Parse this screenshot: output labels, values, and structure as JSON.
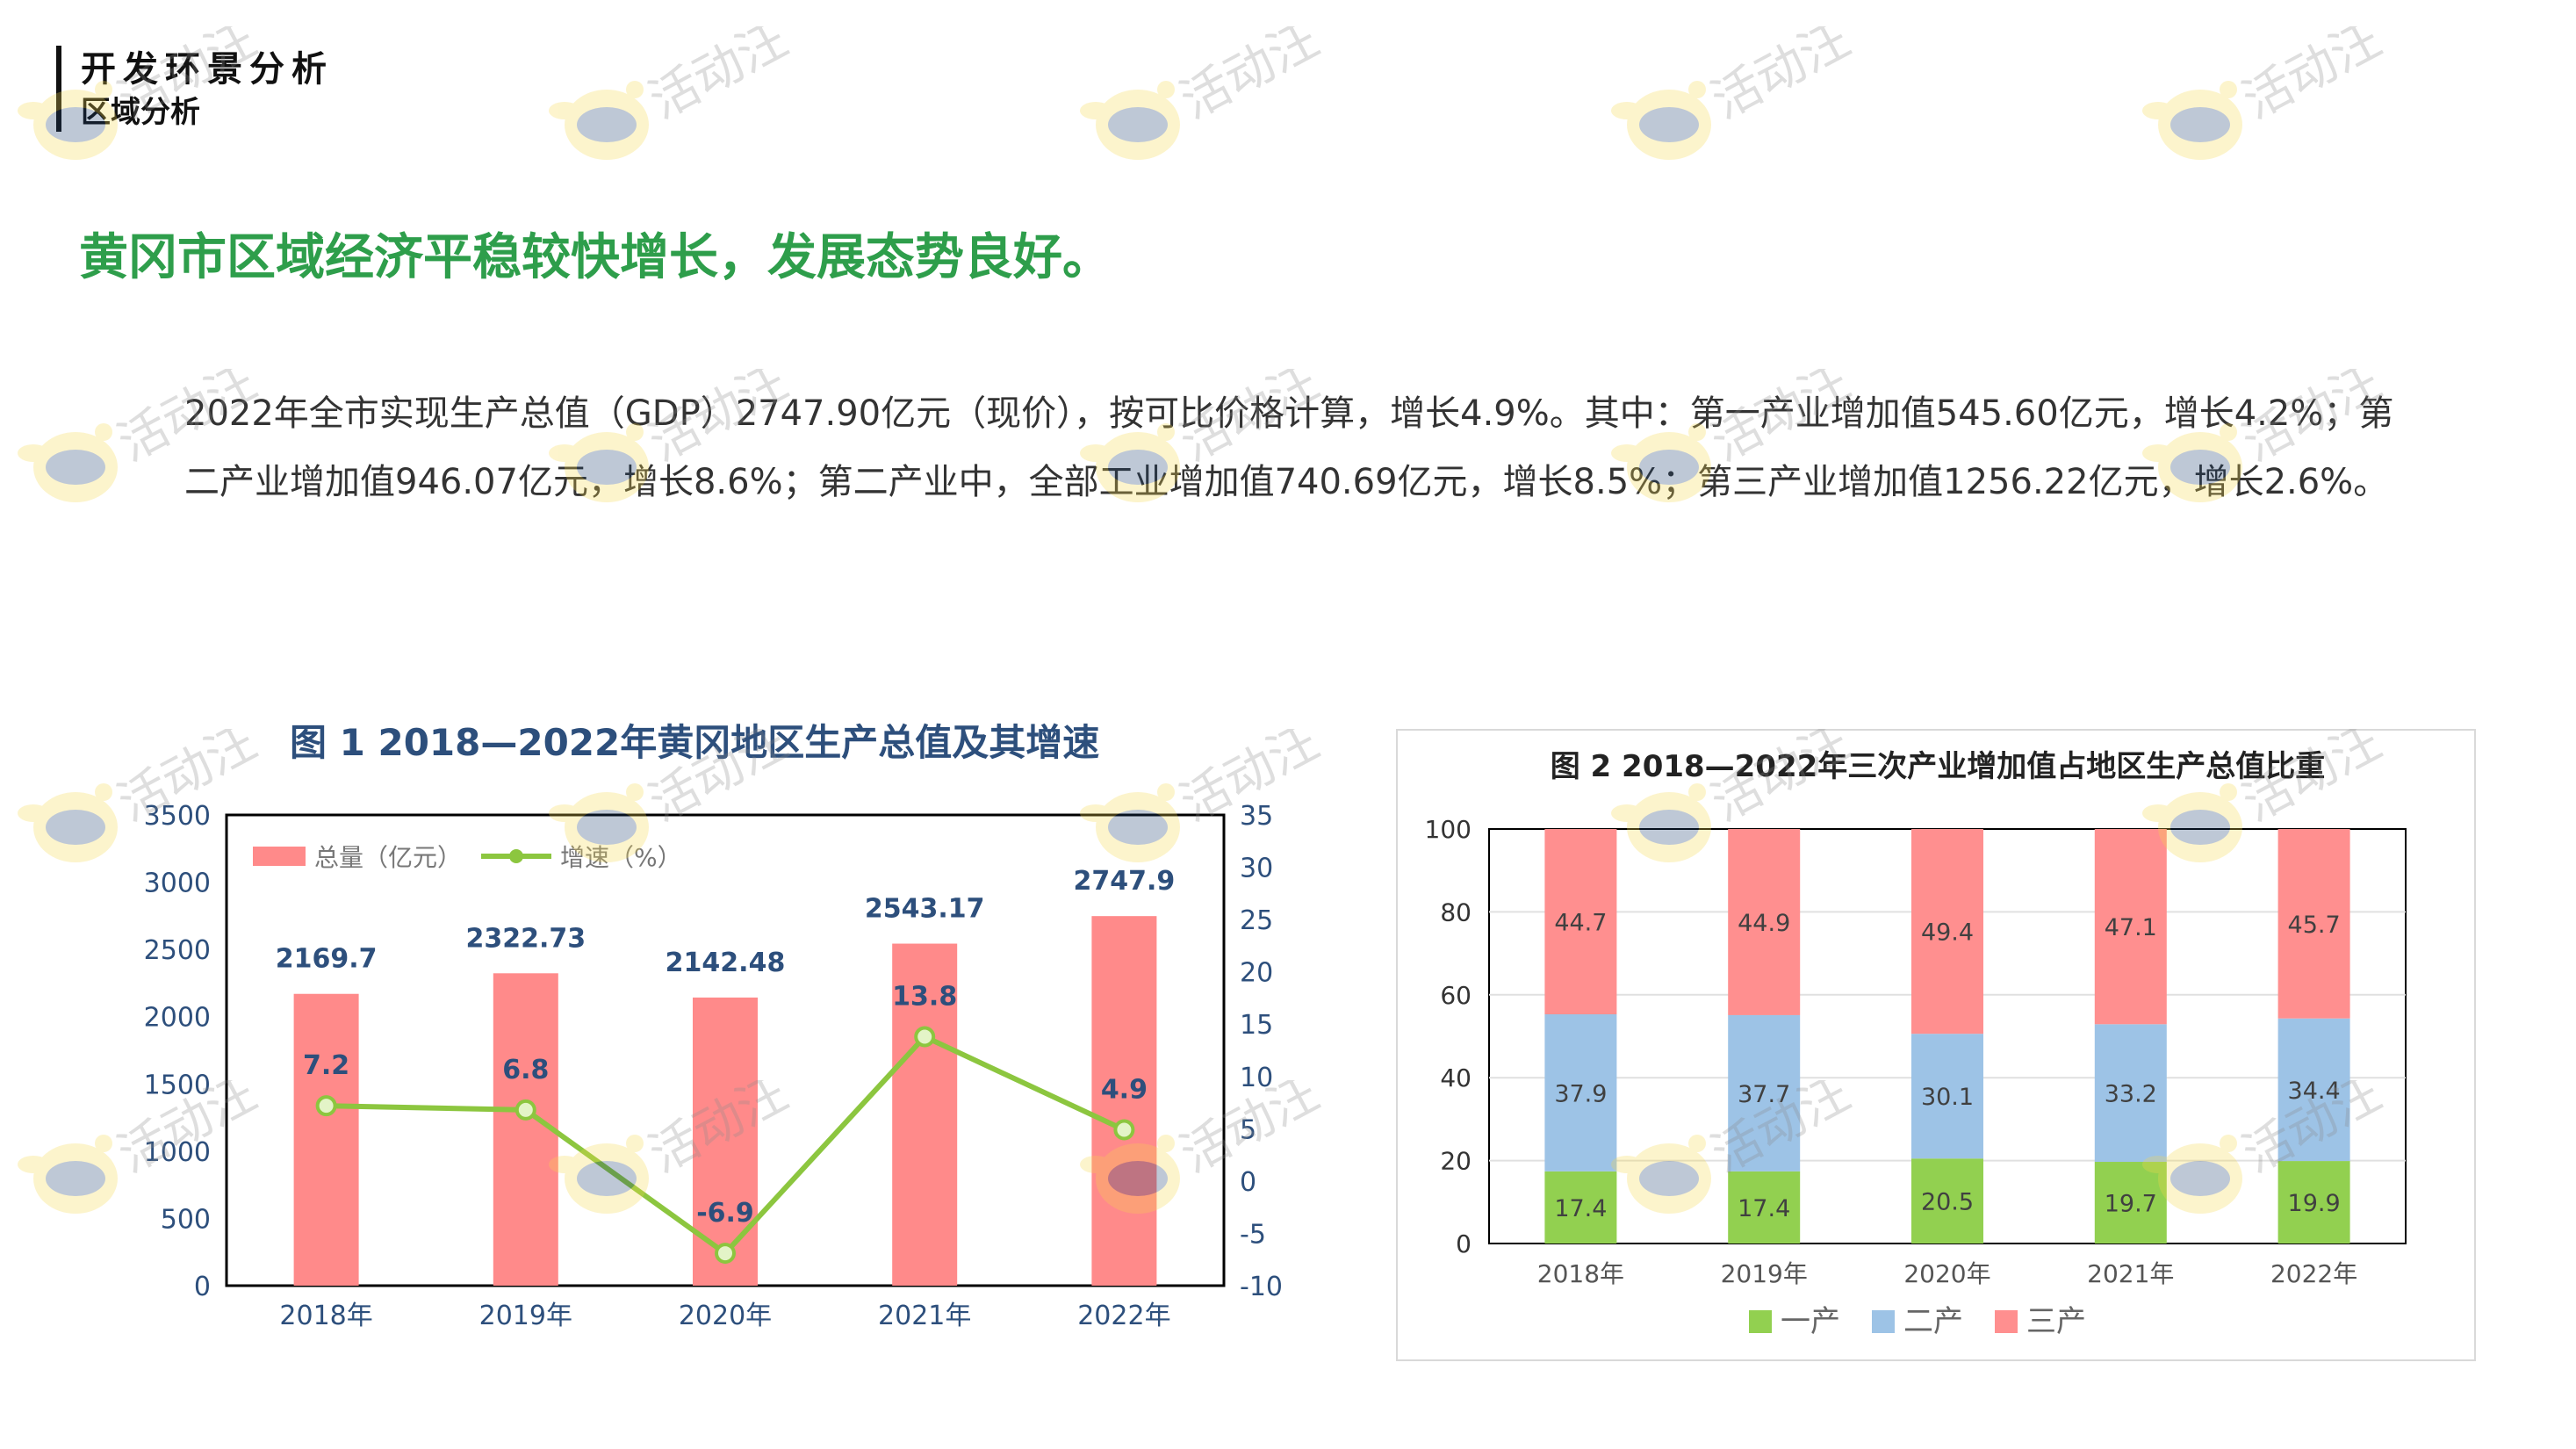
{
  "header": {
    "title": "开发环景分析",
    "subtitle": "区域分析"
  },
  "headline": "黄冈市区域经济平稳较快增长，发展态势良好。",
  "paragraph": "2022年全市实现生产总值（GDP）2747.90亿元（现价），按可比价格计算，增长4.9%。其中：第一产业增加值545.60亿元，增长4.2%；第二产业增加值946.07亿元，增长8.6%；第二产业中，全部工业增加值740.69亿元，增长8.5%；第三产业增加值1256.22亿元，增长2.6%。",
  "watermark_text": "活动汪",
  "colors": {
    "accent": "#2e9e4b",
    "bar": "#ff8a8a",
    "line": "#8cc63f",
    "primary": "#92d050",
    "secondary": "#9dc3e6",
    "tertiary": "#ff8f8f"
  },
  "chart_data": [
    {
      "type": "bar",
      "title": "图 1   2018—2022年黄冈地区生产总值及其增速",
      "categories": [
        "2018年",
        "2019年",
        "2020年",
        "2021年",
        "2022年"
      ],
      "series": [
        {
          "name": "总量（亿元）",
          "type": "bar",
          "axis": "left",
          "values": [
            2169.7,
            2322.73,
            2142.48,
            2543.17,
            2747.9
          ],
          "labels": [
            "2169.7",
            "2322.73",
            "2142.48",
            "2543.17",
            "2747.9"
          ]
        },
        {
          "name": "增速（%）",
          "type": "line",
          "axis": "right",
          "values": [
            7.2,
            6.8,
            -6.9,
            13.8,
            4.9
          ],
          "labels": [
            "7.2",
            "6.8",
            "-6.9",
            "13.8",
            "4.9"
          ]
        }
      ],
      "ylim": [
        0,
        3500
      ],
      "yticks": [
        "0",
        "500",
        "1000",
        "1500",
        "2000",
        "2500",
        "3000",
        "3500"
      ],
      "y2lim": [
        -10,
        35
      ],
      "y2ticks": [
        "-10",
        "-5",
        "0",
        "5",
        "10",
        "15",
        "20",
        "25",
        "30",
        "35"
      ],
      "legend": "top-left"
    },
    {
      "type": "bar",
      "stacked": true,
      "title": "图 2   2018—2022年三次产业增加值占地区生产总值比重",
      "categories": [
        "2018年",
        "2019年",
        "2020年",
        "2021年",
        "2022年"
      ],
      "series": [
        {
          "name": "一产",
          "values": [
            17.4,
            17.4,
            20.5,
            19.7,
            19.9
          ],
          "labels": [
            "17.4",
            "17.4",
            "20.5",
            "19.7",
            "19.9"
          ]
        },
        {
          "name": "二产",
          "values": [
            37.9,
            37.7,
            30.1,
            33.2,
            34.4
          ],
          "labels": [
            "37.9",
            "37.7",
            "30.1",
            "33.2",
            "34.4"
          ]
        },
        {
          "name": "三产",
          "values": [
            44.7,
            44.9,
            49.4,
            47.1,
            45.7
          ],
          "labels": [
            "44.7",
            "44.9",
            "49.4",
            "47.1",
            "45.7"
          ]
        }
      ],
      "ylim": [
        0,
        100
      ],
      "yticks": [
        "0",
        "20",
        "40",
        "60",
        "80",
        "100"
      ],
      "legend": "bottom"
    }
  ]
}
